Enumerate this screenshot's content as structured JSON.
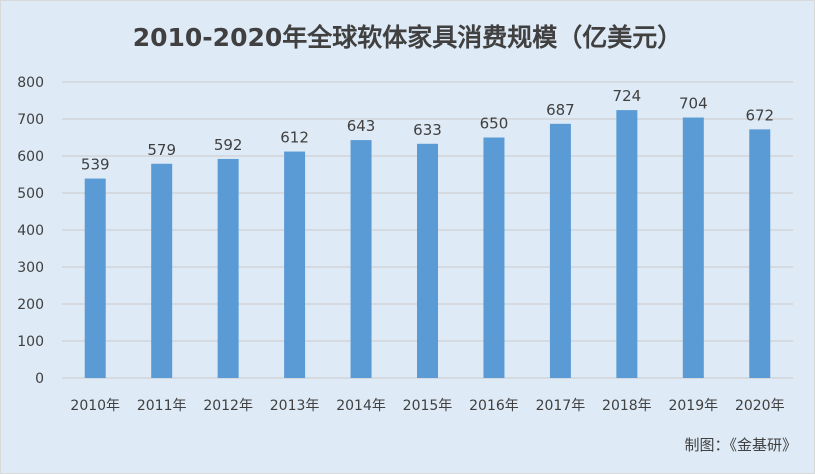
{
  "colors": {
    "background": "#deeaf6",
    "bar": "#5b9bd5",
    "gridline": "#c9c9c9",
    "text": "#404040"
  },
  "chart_data": {
    "type": "bar",
    "title": "2010-2020年全球软体家具消费规模（亿美元）",
    "xlabel": "",
    "ylabel": "",
    "categories": [
      "2010年",
      "2011年",
      "2012年",
      "2013年",
      "2014年",
      "2015年",
      "2016年",
      "2017年",
      "2018年",
      "2019年",
      "2020年"
    ],
    "values": [
      539,
      579,
      592,
      612,
      643,
      633,
      650,
      687,
      724,
      704,
      672
    ],
    "ylim": [
      0,
      800
    ],
    "yticks": [
      0,
      100,
      200,
      300,
      400,
      500,
      600,
      700,
      800
    ],
    "grid": true,
    "legend": "none",
    "data_labels": true
  },
  "source_note": "制图：《金基研》"
}
